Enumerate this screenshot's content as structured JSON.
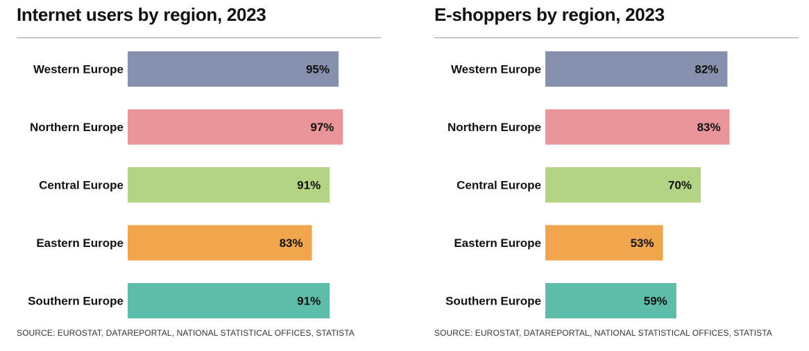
{
  "chart_data": [
    {
      "type": "bar",
      "orientation": "horizontal",
      "title": "Internet users by region, 2023",
      "categories": [
        "Western Europe",
        "Northern Europe",
        "Central Europe",
        "Eastern Europe",
        "Southern Europe"
      ],
      "values": [
        95,
        97,
        91,
        83,
        91
      ],
      "value_labels": [
        "95%",
        "97%",
        "91%",
        "83%",
        "91%"
      ],
      "colors": [
        "#8790ad",
        "#ea9599",
        "#b3d483",
        "#f1a54c",
        "#5dbda8"
      ],
      "xlim": [
        0,
        100
      ],
      "source": "SOURCE: EUROSTAT, DATAREPORTAL, NATIONAL STATISTICAL OFFICES, STATISTA"
    },
    {
      "type": "bar",
      "orientation": "horizontal",
      "title": "E-shoppers by region, 2023",
      "categories": [
        "Western Europe",
        "Northern Europe",
        "Central Europe",
        "Eastern Europe",
        "Southern Europe"
      ],
      "values": [
        82,
        83,
        70,
        53,
        59
      ],
      "value_labels": [
        "82%",
        "83%",
        "70%",
        "53%",
        "59%"
      ],
      "colors": [
        "#8790ad",
        "#ea9599",
        "#b3d483",
        "#f1a54c",
        "#5dbda8"
      ],
      "xlim": [
        0,
        100
      ],
      "source": "SOURCE: EUROSTAT, DATAREPORTAL, NATIONAL STATISTICAL OFFICES, STATISTA"
    }
  ]
}
